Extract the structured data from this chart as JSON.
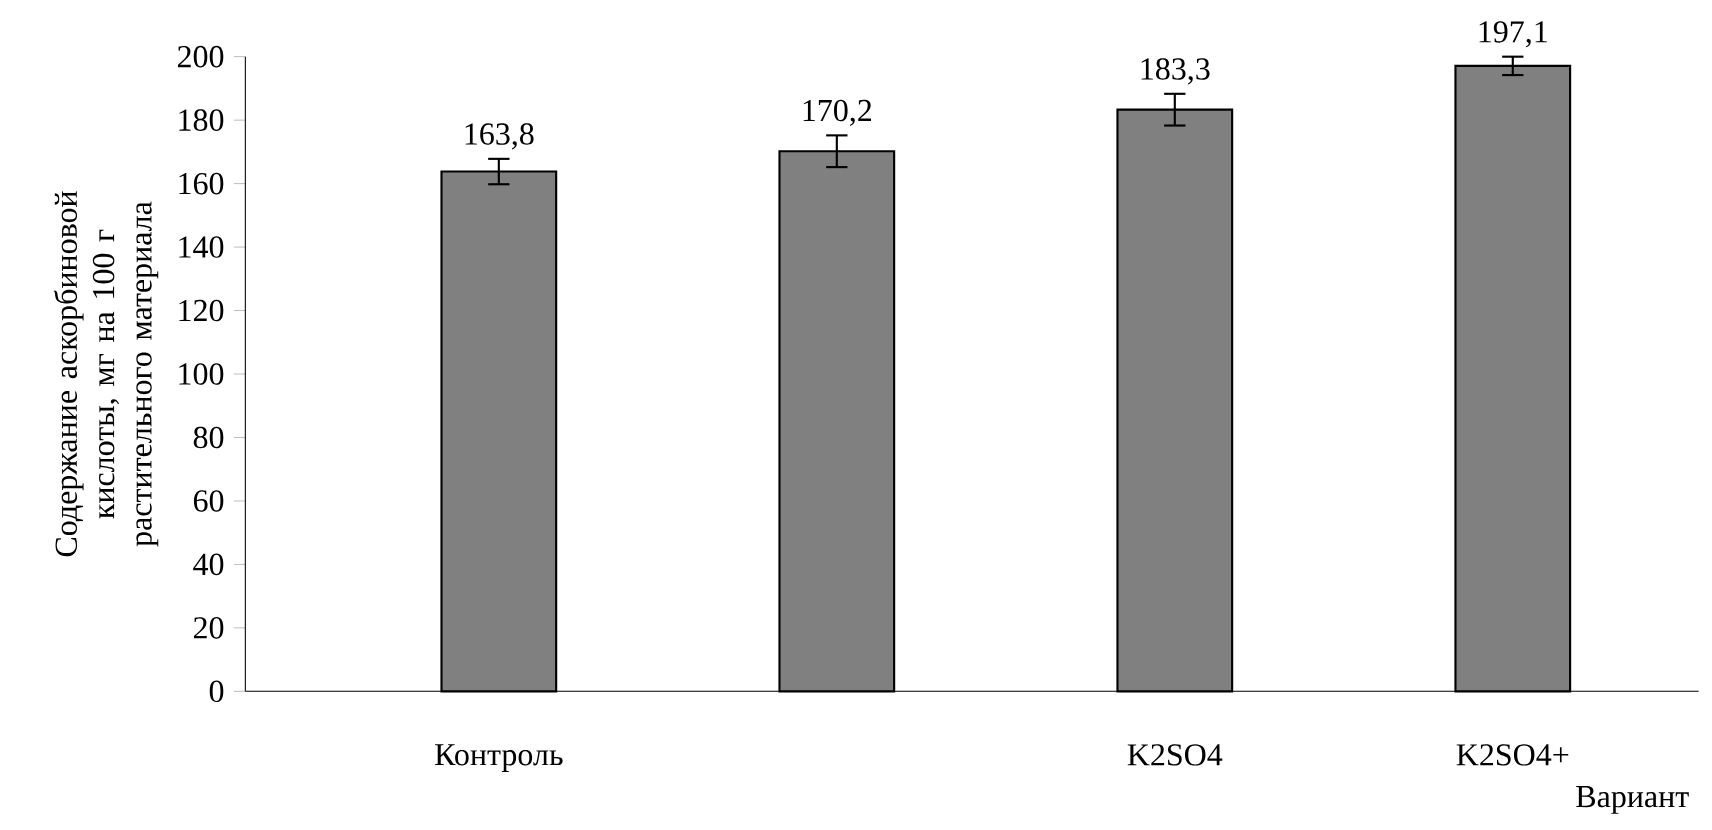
{
  "chart_data": {
    "type": "bar",
    "xlabel": "Вариант",
    "ylabel": "Содержание аскорбиновой кислоты, мг на 100 г растительного материала",
    "categories": [
      "Контроль",
      null,
      "K2SO4",
      "K2SO4+"
    ],
    "values": [
      163.8,
      170.2,
      183.3,
      197.1
    ],
    "errors": [
      4,
      5,
      5,
      2.9
    ],
    "value_labels": [
      "163,8",
      "170,2",
      "183,3",
      "197,1"
    ],
    "color": "#808080",
    "ylim": [
      0,
      200
    ],
    "yticks": [
      0,
      20,
      40,
      60,
      80,
      100,
      120,
      140,
      160,
      180,
      200
    ]
  }
}
